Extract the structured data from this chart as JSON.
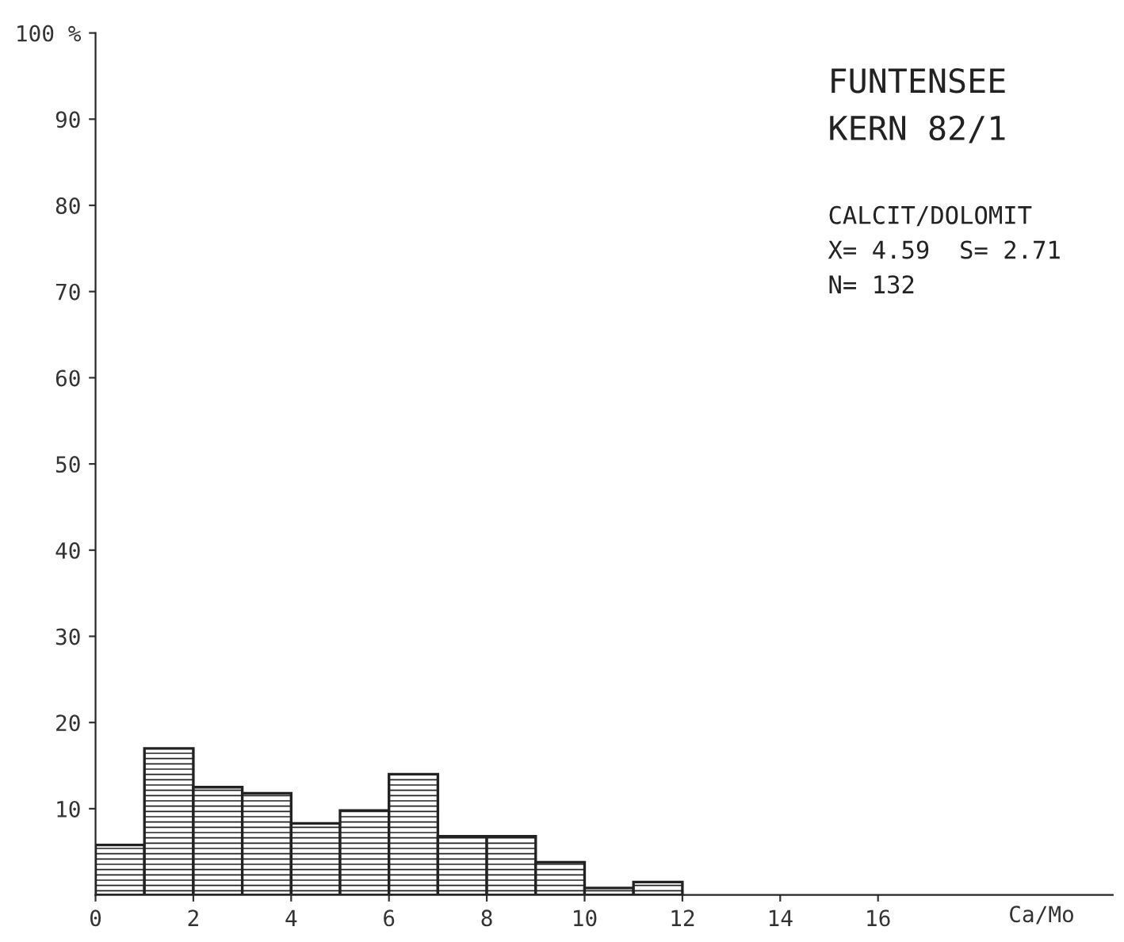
{
  "chart_data": {
    "type": "histogram",
    "bins": [
      0,
      1,
      2,
      3,
      4,
      5,
      6,
      7,
      8,
      9,
      10,
      11,
      12
    ],
    "values": [
      5.8,
      17,
      12.5,
      11.8,
      8.3,
      9.8,
      14,
      6.8,
      6.8,
      3.8,
      0.8,
      1.5
    ],
    "color": "#222222",
    "xlim": [
      0,
      20.8
    ],
    "xticks": [
      0,
      2,
      4,
      6,
      8,
      10,
      12,
      14,
      16
    ],
    "ylim": [
      0,
      100
    ],
    "yticks": [
      10,
      20,
      30,
      40,
      50,
      60,
      70,
      80,
      90,
      {
        "value": 100,
        "label": "100 %"
      }
    ],
    "xlabel": "Ca/Mo",
    "annotations": [
      "FUNTENSEE\nKERN 82/1",
      "CALCIT/DOLOMIT\nX= 4.59  S= 2.71\nN= 132"
    ],
    "grid": false
  }
}
